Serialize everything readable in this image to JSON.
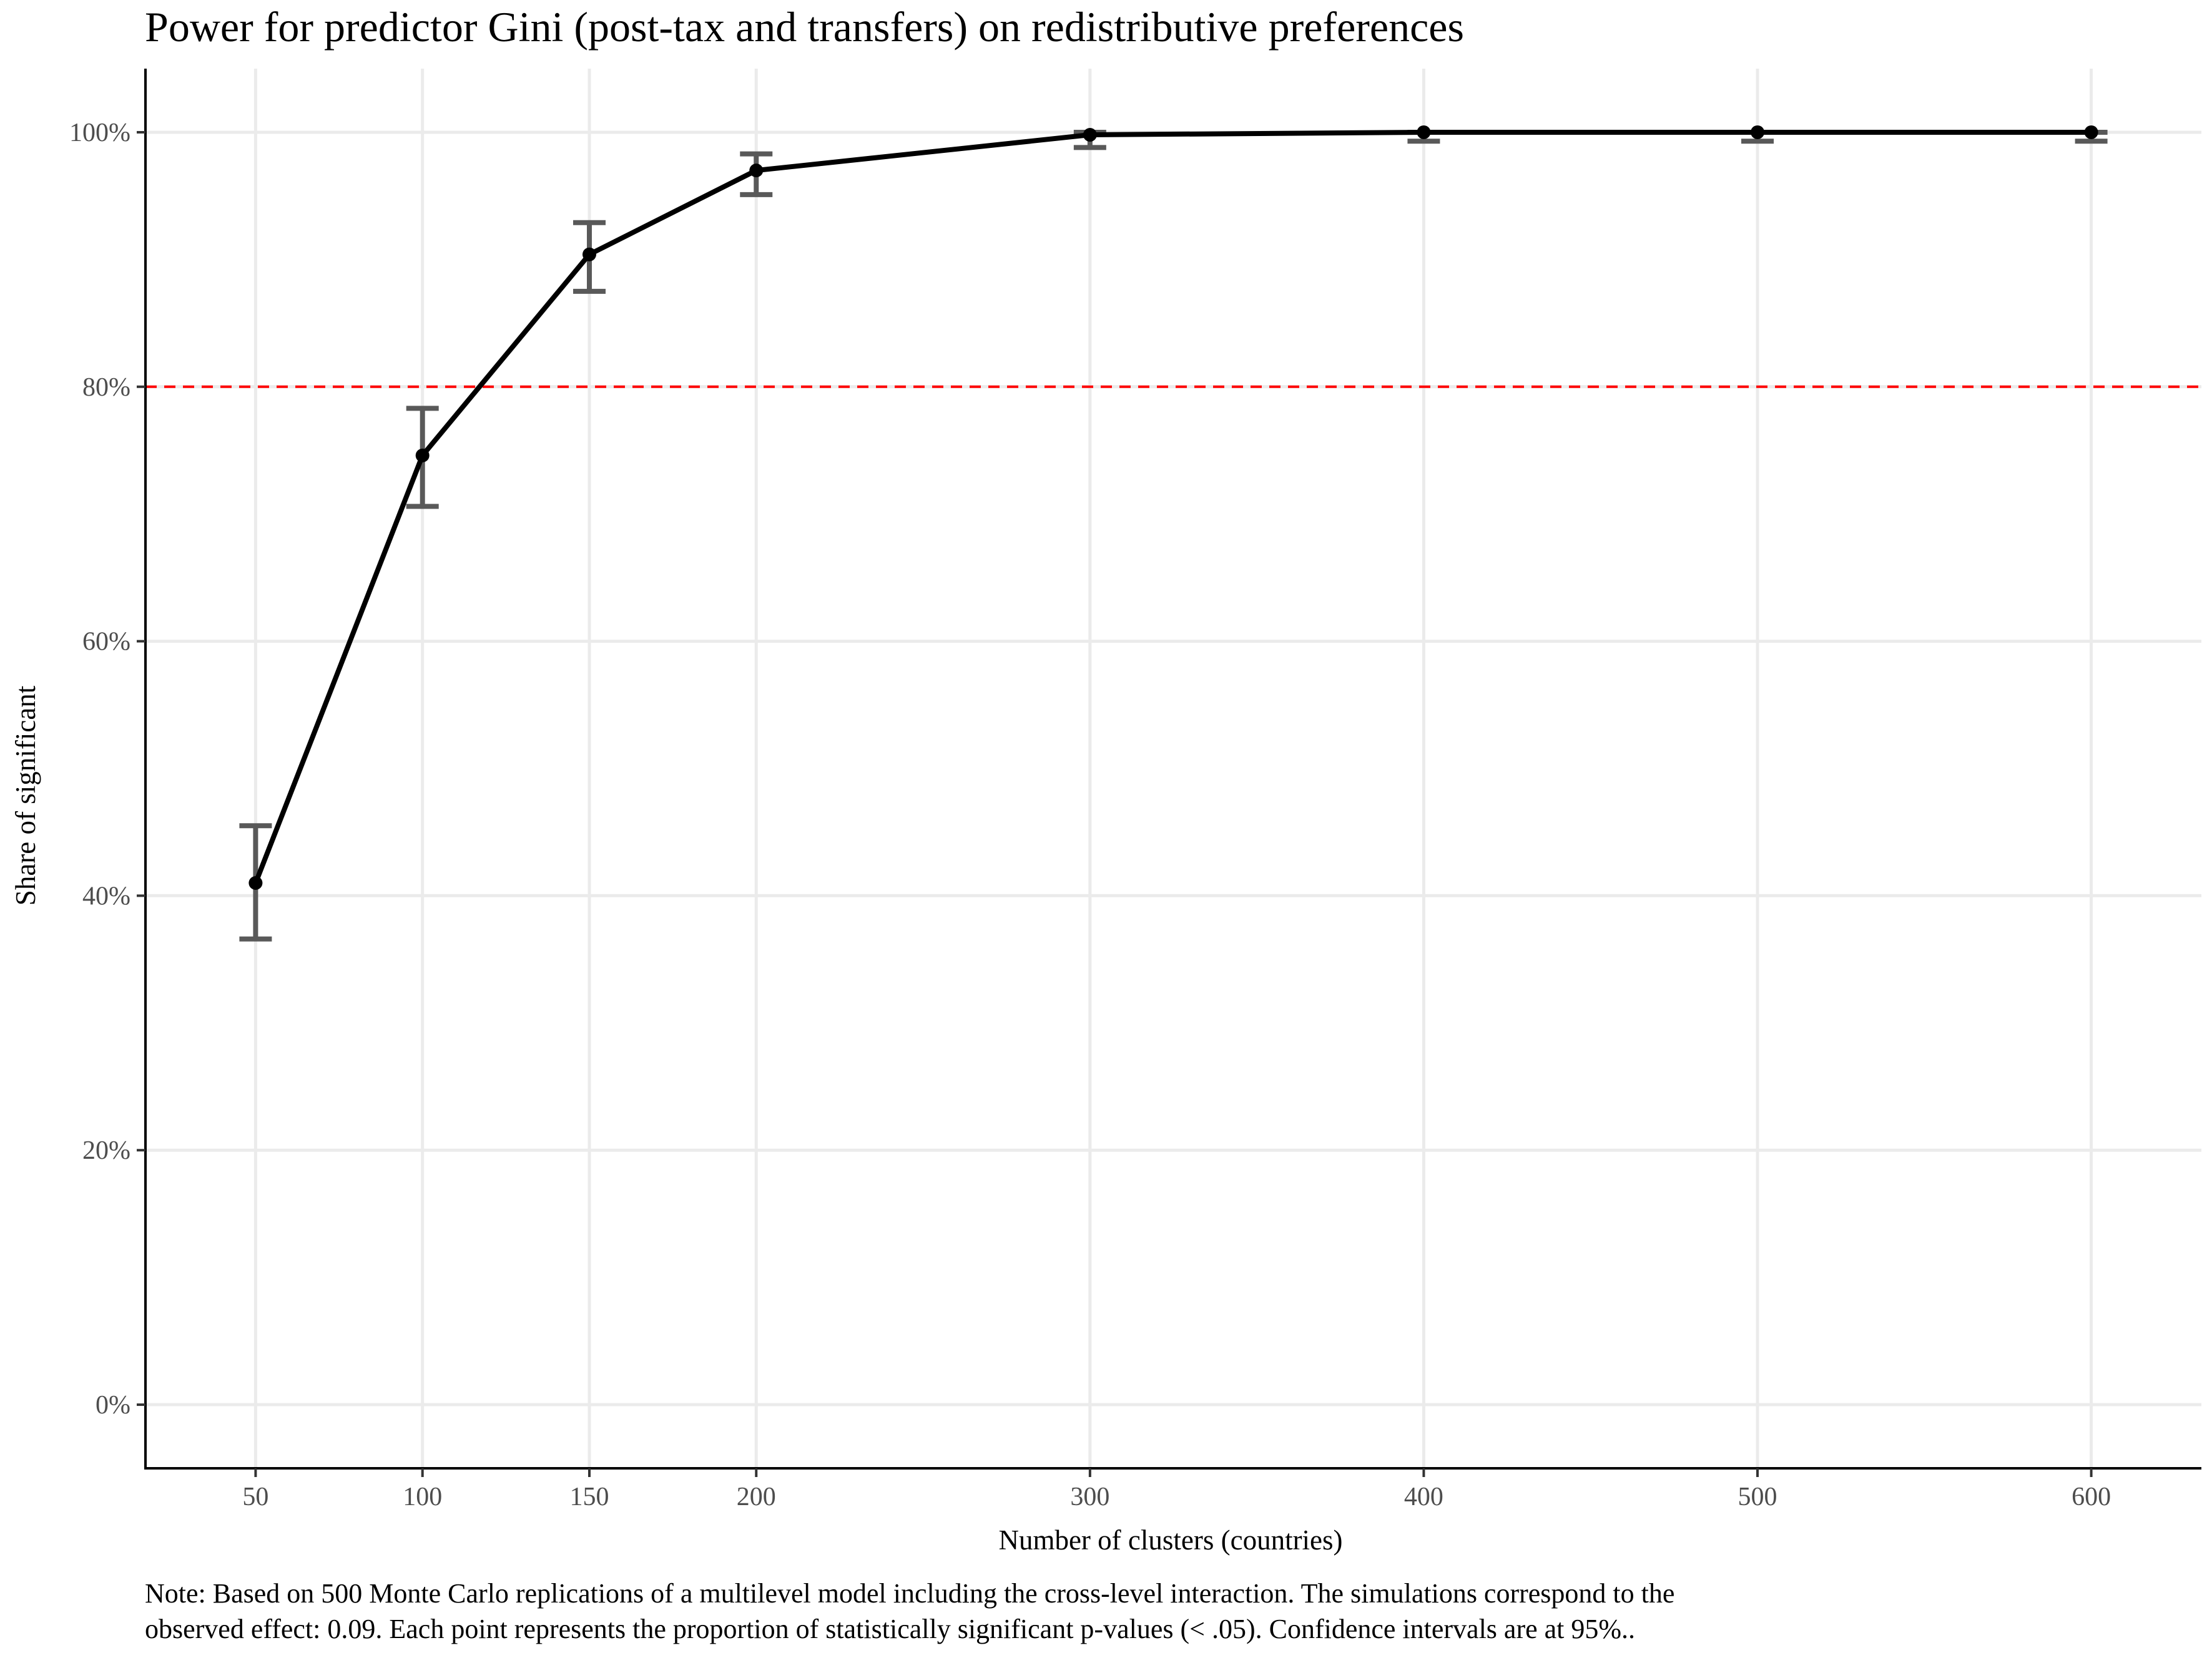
{
  "chart_data": {
    "type": "line",
    "title": "Power for predictor Gini (post-tax and transfers) on redistributive preferences",
    "xlabel": "Number of clusters (countries)",
    "ylabel": "Share of significant",
    "x": [
      50,
      100,
      150,
      200,
      300,
      400,
      500,
      600
    ],
    "x_ticks": [
      "50",
      "100",
      "150",
      "200",
      "300",
      "400",
      "500",
      "600"
    ],
    "xlim": [
      17,
      633
    ],
    "y_ticks": [
      "0%",
      "20%",
      "40%",
      "60%",
      "80%",
      "100%"
    ],
    "ylim": [
      -5,
      105
    ],
    "series": [
      {
        "values": [
          41.0,
          74.6,
          90.4,
          97.0,
          99.8,
          100.0,
          100.0,
          100.0
        ],
        "ci_lower": [
          36.6,
          70.6,
          87.5,
          95.1,
          98.8,
          99.3,
          99.3,
          99.3
        ],
        "ci_upper": [
          45.5,
          78.3,
          92.9,
          98.3,
          100.0,
          100.0,
          100.0,
          100.0
        ],
        "color": "#000000",
        "errorbar_color": "#595959"
      }
    ],
    "reference_line": {
      "y": 80,
      "color": "#ff0000",
      "style": "dashed"
    },
    "grid": true,
    "note": [
      "Note: Based on 500 Monte Carlo replications of a multilevel model including the cross-level interaction. The simulations correspond to the",
      "observed effect: 0.09. Each point represents the proportion of statistically significant p-values (< .05). Confidence intervals are at 95%.."
    ]
  }
}
